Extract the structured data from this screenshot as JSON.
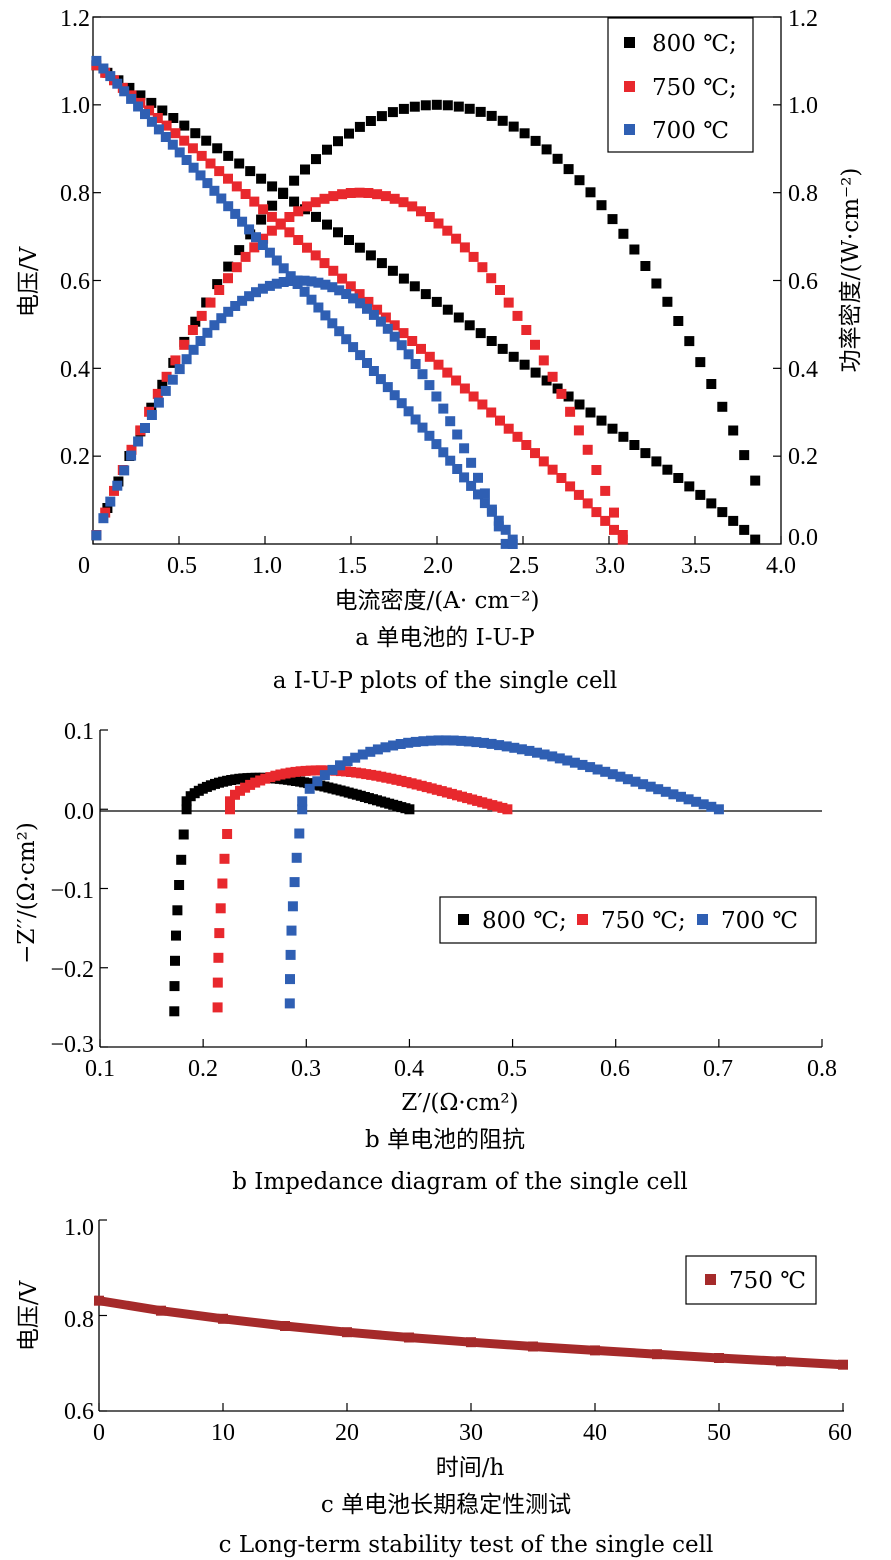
{
  "chart_data": [
    {
      "id": "a",
      "type": "scatter",
      "caption_cn": "a  单电池的 I-U-P",
      "caption_en": "a  I-U-P plots of the single cell",
      "xlabel": "电流密度/(A· cm⁻²)",
      "ylabel": "电压/V",
      "y2label": "功率密度/(W·cm⁻²)",
      "xlim": [
        0,
        4.0
      ],
      "ylim": [
        0,
        1.2
      ],
      "y2lim": [
        0,
        1.2
      ],
      "xticks": [
        "0",
        "0.5",
        "1.0",
        "1.5",
        "2.0",
        "2.5",
        "3.0",
        "3.5",
        "4.0"
      ],
      "yticks": [
        "0.2",
        "0.4",
        "0.6",
        "0.8",
        "1.0",
        "1.2"
      ],
      "y2ticks": [
        "0.0",
        "0.2",
        "0.4",
        "0.6",
        "0.8",
        "1.0",
        "1.2"
      ],
      "legend_position": "top-right",
      "series": [
        {
          "name": "800 ℃;",
          "color": "#000000",
          "ocv": 1.08,
          "imax": 3.85,
          "pmax": 1.0,
          "i_at_pmax": 2.0
        },
        {
          "name": "750 ℃;",
          "color": "#e8282d",
          "ocv": 1.08,
          "imax": 3.08,
          "pmax": 0.8,
          "i_at_pmax": 1.55
        },
        {
          "name": "700 ℃",
          "color": "#2f5fb3",
          "ocv": 1.09,
          "imax": 2.44,
          "pmax": 0.6,
          "i_at_pmax": 1.2
        }
      ]
    },
    {
      "id": "b",
      "type": "scatter",
      "caption_cn": "b  单电池的阻抗",
      "caption_en": "b  Impedance diagram of the single cell",
      "xlabel": "Z′/(Ω·cm²)",
      "ylabel": "−Z′′/(Ω·cm²)",
      "xlim": [
        0.1,
        0.8
      ],
      "ylim": [
        -0.3,
        0.1
      ],
      "xticks": [
        "0.1",
        "0.2",
        "0.3",
        "0.4",
        "0.5",
        "0.6",
        "0.7",
        "0.8"
      ],
      "yticks": [
        "0.1",
        "0.0",
        "−0.1",
        "−0.2",
        "−0.3"
      ],
      "legend_position": "right",
      "legend": [
        "800 ℃;",
        "750 ℃;",
        "700 ℃"
      ],
      "series": [
        {
          "name": "800 ℃",
          "color": "#000000",
          "x_start": 0.172,
          "x_end": 0.4,
          "peak": 0.035,
          "y_low": -0.255
        },
        {
          "name": "750 ℃",
          "color": "#e8282d",
          "x_start": 0.214,
          "x_end": 0.495,
          "peak": 0.045,
          "y_low": -0.25
        },
        {
          "name": "700 ℃",
          "color": "#2f5fb3",
          "x_start": 0.284,
          "x_end": 0.7,
          "peak": 0.085,
          "y_low": -0.245
        }
      ]
    },
    {
      "id": "c",
      "type": "line",
      "caption_cn": "c  单电池长期稳定性测试",
      "caption_en": "c  Long-term stability test of the single cell",
      "xlabel": "时间/h",
      "ylabel": "电压/V",
      "xlim": [
        0,
        60
      ],
      "ylim": [
        0.6,
        1.0
      ],
      "xticks": [
        "0",
        "10",
        "20",
        "30",
        "40",
        "50",
        "60"
      ],
      "yticks": [
        "0.6",
        "0.8",
        "1.0"
      ],
      "legend_position": "top-right",
      "series": [
        {
          "name": "750 ℃",
          "color": "#a52a2a",
          "x": [
            0,
            5,
            10,
            15,
            20,
            25,
            30,
            35,
            40,
            45,
            50,
            55,
            60
          ],
          "y": [
            0.831,
            0.81,
            0.793,
            0.778,
            0.765,
            0.754,
            0.744,
            0.735,
            0.727,
            0.719,
            0.711,
            0.704,
            0.697
          ]
        }
      ]
    }
  ]
}
